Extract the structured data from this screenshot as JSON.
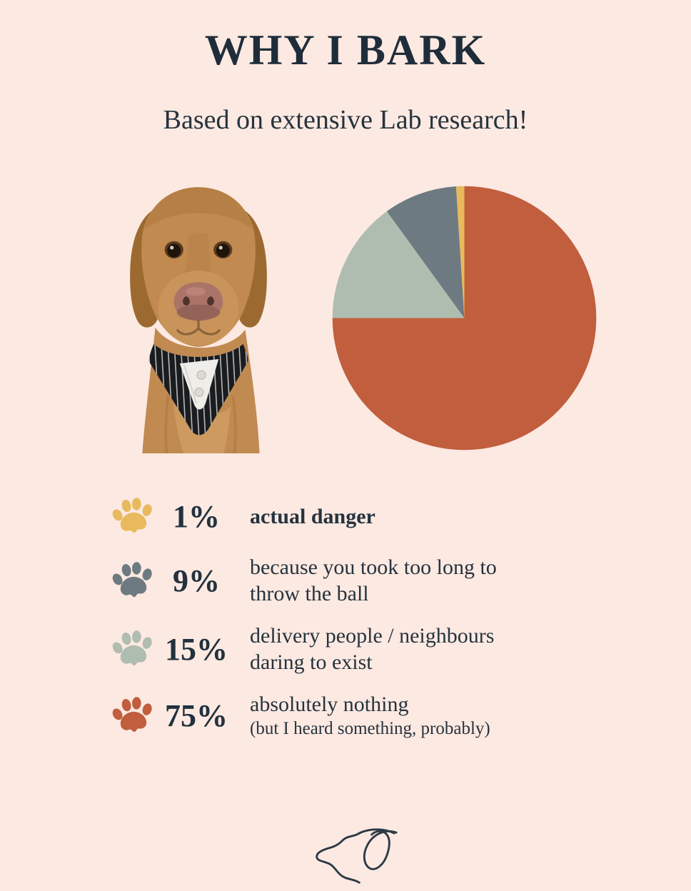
{
  "page": {
    "background_color": "#fce9e2",
    "ink_color": "#1f2d3a"
  },
  "header": {
    "title": "WHY I BARK",
    "subtitle": "Based on extensive Lab research!"
  },
  "dog_photo": {
    "description": "fox-red Labrador wearing a black pinstripe tuxedo bandana with white collar and buttons"
  },
  "chart_data": {
    "type": "pie",
    "title": "WHY I BARK",
    "subtitle": "Based on extensive Lab research!",
    "unit": "%",
    "direction": "clockwise",
    "start_angle_deg": 0,
    "legend_position": "bottom-left list with paw icons",
    "slices": [
      {
        "label": "absolutely nothing (but I heard something, probably)",
        "value": 75,
        "color": "#c15e3d"
      },
      {
        "label": "delivery people / neighbours daring to exist",
        "value": 15,
        "color": "#afbdb1"
      },
      {
        "label": "because you took too long to throw the ball",
        "value": 9,
        "color": "#6d7a81"
      },
      {
        "label": "actual danger",
        "value": 1,
        "color": "#e8ba5d"
      }
    ]
  },
  "legend": {
    "rows": [
      {
        "icon": "paw-icon",
        "color": "#e8ba5d",
        "percent": "1%",
        "line1": "actual danger"
      },
      {
        "icon": "paw-icon",
        "color": "#6d7a81",
        "percent": "9%",
        "line1": "because you took too long to",
        "line2": "throw the ball"
      },
      {
        "icon": "paw-icon",
        "color": "#afbdb1",
        "percent": "15%",
        "line1": "delivery people / neighbours",
        "line2": "daring to exist"
      },
      {
        "icon": "paw-icon",
        "color": "#c15e3d",
        "percent": "75%",
        "line1": "absolutely nothing",
        "line2_small": "(but I heard something, probably)"
      }
    ]
  },
  "footer": {
    "icon": "dog-line-drawing-icon"
  }
}
